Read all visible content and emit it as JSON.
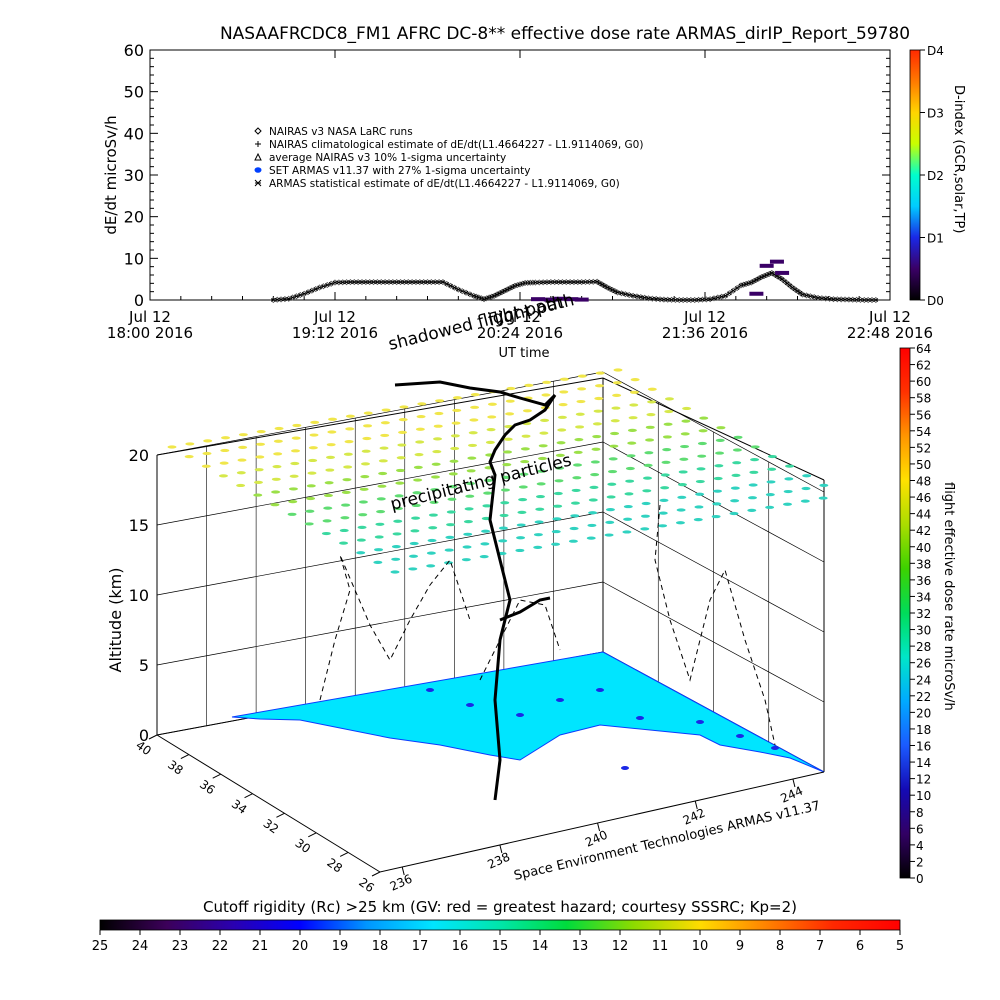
{
  "chart_data": [
    {
      "type": "line",
      "title": "NASAAFRCDC8_FM1 AFRC DC-8** effective dose rate ARMAS_dirIP_Report_59780",
      "xlabel": "UT time",
      "ylabel": "dE/dt microSv/h",
      "ylim": [
        0,
        60
      ],
      "yticks": [
        "0",
        "10",
        "20",
        "30",
        "40",
        "50",
        "60"
      ],
      "xlim_minutes": [
        0,
        288
      ],
      "xticks": [
        {
          "m": 0,
          "l1": "Jul 12",
          "l2": "18:00 2016"
        },
        {
          "m": 72,
          "l1": "Jul 12",
          "l2": "19:12 2016"
        },
        {
          "m": 144,
          "l1": "Jul 12",
          "l2": "20:24 2016"
        },
        {
          "m": 216,
          "l1": "Jul 12",
          "l2": "21:36 2016"
        },
        {
          "m": 288,
          "l1": "Jul 12",
          "l2": "22:48 2016"
        }
      ],
      "legend_position": "upper-left",
      "legend": [
        {
          "sym": "diamond",
          "label": "NAIRAS v3 NASA LaRC runs"
        },
        {
          "sym": "plus",
          "label": "NAIRAS climatological estimate of dE/dt(L1.4664227 - L1.9114069, G0)"
        },
        {
          "sym": "triangle",
          "label": "average NAIRAS v3 10% 1-sigma uncertainty"
        },
        {
          "sym": "dot",
          "label": "SET ARMAS v11.37 with 27% 1-sigma uncertainty"
        },
        {
          "sym": "star",
          "label": "ARMAS statistical estimate of dE/dt(L1.4664227 - L1.9114069, G0)"
        }
      ],
      "series": [
        {
          "name": "NAIRAS v3 NASA LaRC runs",
          "x": [
            48,
            54,
            60,
            66,
            72,
            78,
            84,
            90,
            96,
            102,
            108,
            114,
            120,
            126,
            130,
            134,
            138,
            142,
            146,
            150,
            156,
            162,
            168,
            174,
            178,
            182,
            188,
            194,
            200,
            206,
            212,
            218,
            224,
            230,
            234,
            238,
            242,
            246,
            250,
            254,
            260,
            266,
            272,
            278,
            284
          ],
          "y": [
            0,
            0.3,
            1.5,
            3,
            4.2,
            4.3,
            4.3,
            4.3,
            4.3,
            4.3,
            4.3,
            4.3,
            2.5,
            1,
            0.2,
            1,
            2.2,
            3.4,
            4.1,
            4.2,
            4.3,
            4.3,
            4.3,
            4.4,
            3,
            1.8,
            1,
            0.4,
            0.1,
            0,
            0,
            0.2,
            1,
            3.5,
            4.2,
            5.5,
            6.5,
            5,
            3,
            1.3,
            0.5,
            0.2,
            0.1,
            0,
            0
          ]
        },
        {
          "name": "SET ARMAS v11.37 with 27% 1-sigma uncertainty",
          "x": [
            151,
            156,
            160,
            164,
            168,
            236,
            240,
            244,
            246
          ],
          "y": [
            0.2,
            0.1,
            0.3,
            0.2,
            0.1,
            1.5,
            8.2,
            9.2,
            6.5
          ]
        }
      ],
      "colorbar": {
        "title": "D-index (GCR,solar,TP)",
        "ticks": [
          "D0",
          "D1",
          "D2",
          "D3",
          "D4"
        ],
        "tick_values": [
          0,
          1.0,
          2.0,
          3.0,
          4.0
        ]
      },
      "annotations": [
        "shadowed flight path",
        "flight path"
      ]
    },
    {
      "type": "scatter",
      "xlabel": "Space Environment Technologies ARMAS v11.37",
      "ylabel": "Altitude (km)",
      "zticks": [
        "0",
        "5",
        "10",
        "15",
        "20"
      ],
      "lon_ticks": [
        "236",
        "238",
        "240",
        "242",
        "244"
      ],
      "lat_ticks": [
        "40",
        "38",
        "36",
        "34",
        "32",
        "30",
        "28",
        "26"
      ],
      "annotations": [
        "precipitating particles"
      ],
      "colorbar": {
        "title": "flight effective dose rate microSv/h",
        "range": [
          0,
          64
        ],
        "ticks": [
          "0",
          "2",
          "4",
          "6",
          "8",
          "10",
          "12",
          "14",
          "16",
          "18",
          "20",
          "22",
          "24",
          "26",
          "28",
          "30",
          "32",
          "34",
          "36",
          "38",
          "40",
          "42",
          "44",
          "46",
          "48",
          "50",
          "52",
          "54",
          "56",
          "58",
          "60",
          "62",
          "64"
        ]
      },
      "particle_colors": [
        "#f0e64a",
        "#d6e84a",
        "#9be048",
        "#5fdc72",
        "#3ad8a0",
        "#30d2c0"
      ],
      "ground_color": "#00e5ff"
    },
    {
      "type": "heatmap",
      "title": "Cutoff rigidity (Rc) >25 km (GV: red = greatest hazard; courtesy SSSRC; Kp=2)",
      "ticks": [
        "25",
        "24",
        "23",
        "22",
        "21",
        "20",
        "19",
        "18",
        "17",
        "16",
        "15",
        "14",
        "13",
        "12",
        "11",
        "10",
        "9",
        "8",
        "7",
        "6",
        "5"
      ]
    }
  ],
  "colors": {
    "dbar": [
      "#000000",
      "#3a0066",
      "#1a28e6",
      "#00ccff",
      "#00ffcc",
      "#c8ff00",
      "#ffd400",
      "#ff7a00",
      "#ff2a00"
    ],
    "rate": [
      "#000000",
      "#320064",
      "#140ab4",
      "#1b5aff",
      "#00aaff",
      "#00e6c8",
      "#00dc5a",
      "#3cd200",
      "#aadd00",
      "#ffe100",
      "#ff9600",
      "#ff3200",
      "#ff0000"
    ],
    "rc": [
      "#000000",
      "#3c005a",
      "#2a00b0",
      "#0000ff",
      "#0096ff",
      "#00e6ff",
      "#00e6aa",
      "#00dc3c",
      "#8cdc00",
      "#ffdc00",
      "#ff8200",
      "#ff2800",
      "#ff0000"
    ]
  }
}
